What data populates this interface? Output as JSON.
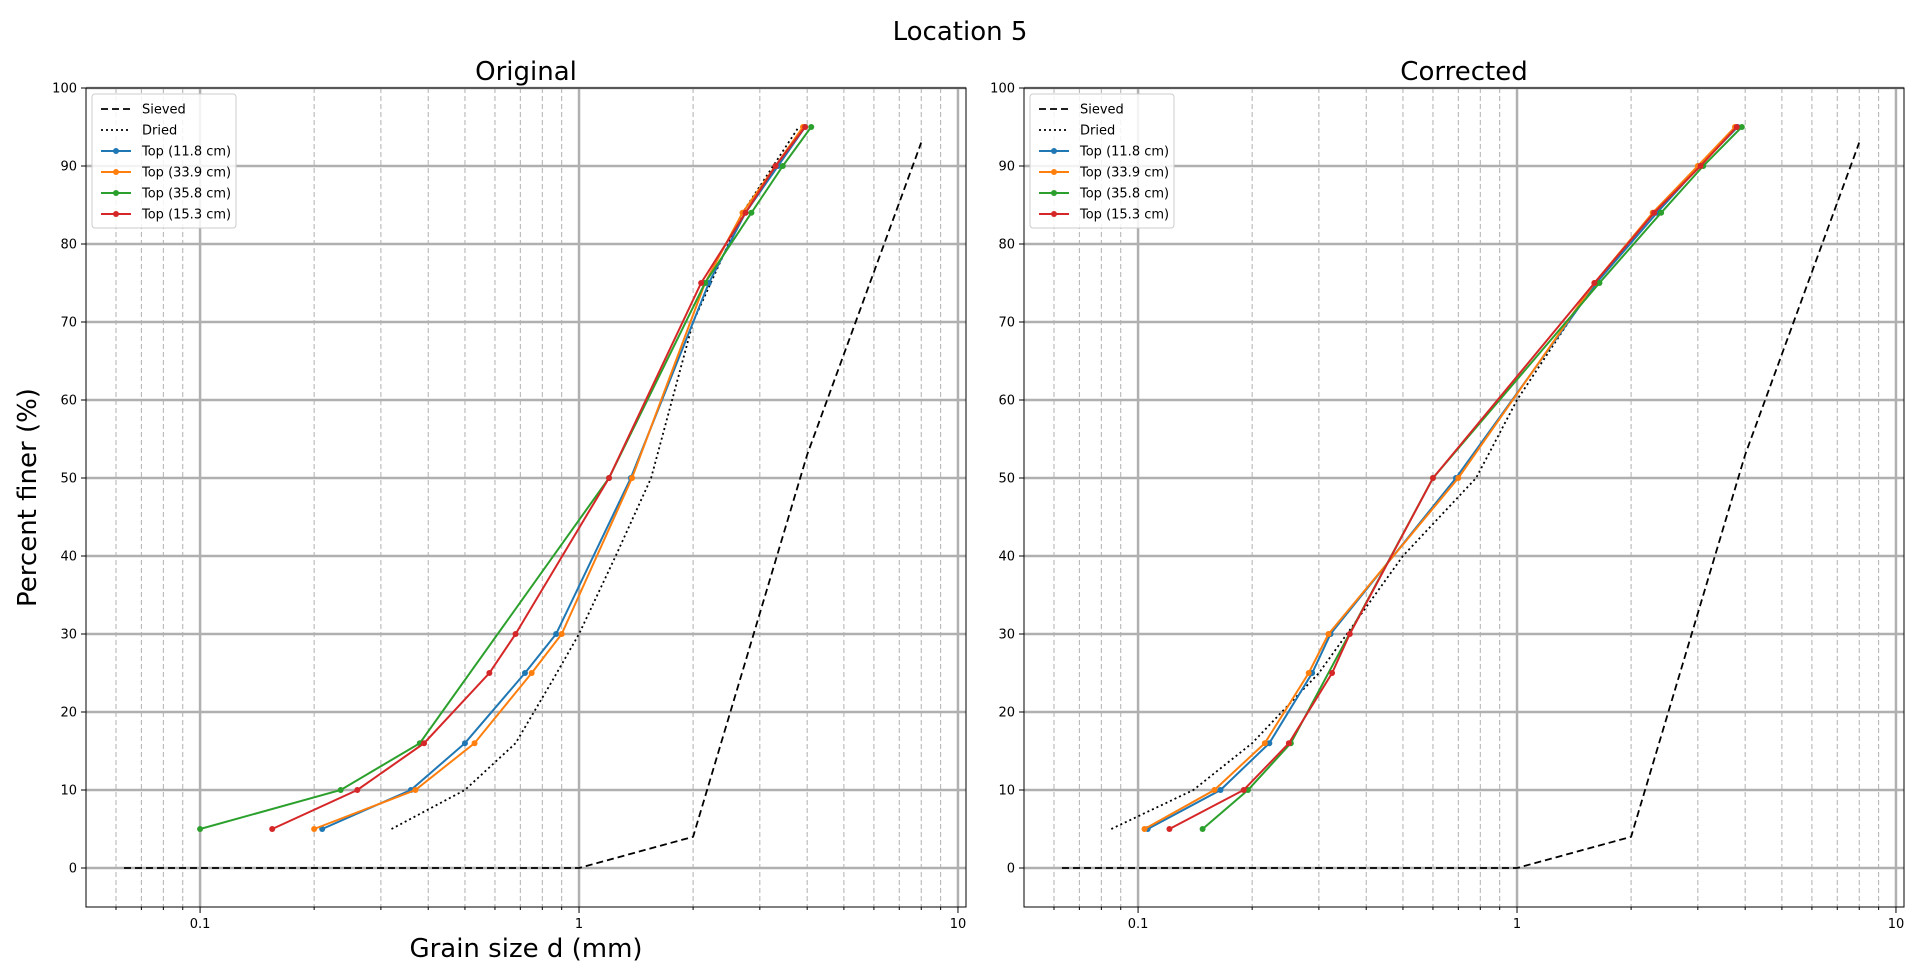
{
  "figure": {
    "suptitle": "Location 5"
  },
  "chart_data": [
    {
      "type": "line",
      "title": "Original",
      "xlabel": "Grain size d (mm)",
      "ylabel": "Percent finer (%)",
      "xscale": "log",
      "xlim": [
        0.05,
        10.5
      ],
      "ylim": [
        -5,
        100
      ],
      "xticks": [
        0.1,
        1,
        10
      ],
      "xtick_labels": [
        "0.1",
        "1",
        "10"
      ],
      "yticks": [
        0,
        10,
        20,
        30,
        40,
        50,
        60,
        70,
        80,
        90,
        100
      ],
      "ytick_labels": [
        "0",
        "10",
        "20",
        "30",
        "40",
        "50",
        "60",
        "70",
        "80",
        "90",
        "100"
      ],
      "grid": true,
      "legend_position": "top-left",
      "series": [
        {
          "name": "Sieved",
          "color": "#000000",
          "style": "dashed",
          "markers": false,
          "x": [
            0.063,
            1.0,
            2.0,
            4.0,
            8.0
          ],
          "y": [
            0,
            0,
            4,
            53,
            93
          ]
        },
        {
          "name": "Dried",
          "color": "#000000",
          "style": "dotted",
          "markers": false,
          "x": [
            0.32,
            0.5,
            0.68,
            0.85,
            1.0,
            1.25,
            1.55,
            2.0,
            2.7,
            3.8
          ],
          "y": [
            5,
            10,
            16,
            24,
            30,
            40,
            50,
            70,
            84,
            95
          ]
        },
        {
          "name": "Top (11.8 cm)",
          "color": "#1f77b4",
          "style": "solid",
          "markers": true,
          "x": [
            0.21,
            0.36,
            0.5,
            0.72,
            0.87,
            1.37,
            2.2,
            2.75,
            3.35,
            3.95
          ],
          "y": [
            5,
            10,
            16,
            25,
            30,
            50,
            75,
            84,
            90,
            95
          ]
        },
        {
          "name": "Top (33.9 cm)",
          "color": "#ff7f0e",
          "style": "solid",
          "markers": true,
          "x": [
            0.2,
            0.37,
            0.53,
            0.75,
            0.9,
            1.38,
            2.15,
            2.7,
            3.3,
            3.9
          ],
          "y": [
            5,
            10,
            16,
            25,
            30,
            50,
            75,
            84,
            90,
            95
          ]
        },
        {
          "name": "Top (35.8 cm)",
          "color": "#2ca02c",
          "style": "solid",
          "markers": true,
          "x": [
            0.1,
            0.235,
            0.38,
            1.2,
            2.15,
            2.85,
            3.45,
            4.1
          ],
          "y": [
            5,
            10,
            16,
            50,
            75,
            84,
            90,
            95
          ]
        },
        {
          "name": "Top (15.3 cm)",
          "color": "#d62728",
          "style": "solid",
          "markers": true,
          "x": [
            0.155,
            0.26,
            0.39,
            0.58,
            0.68,
            1.2,
            2.1,
            2.75,
            3.3,
            3.95
          ],
          "y": [
            5,
            10,
            16,
            25,
            30,
            50,
            75,
            84,
            90,
            95
          ]
        }
      ]
    },
    {
      "type": "line",
      "title": "Corrected",
      "xlabel": "",
      "ylabel": "",
      "xscale": "log",
      "xlim": [
        0.05,
        10.5
      ],
      "ylim": [
        -5,
        100
      ],
      "xticks": [
        0.1,
        1,
        10
      ],
      "xtick_labels": [
        "0.1",
        "1",
        "10"
      ],
      "yticks": [
        0,
        10,
        20,
        30,
        40,
        50,
        60,
        70,
        80,
        90,
        100
      ],
      "ytick_labels": [
        "0",
        "10",
        "20",
        "30",
        "40",
        "50",
        "60",
        "70",
        "80",
        "90",
        "100"
      ],
      "grid": true,
      "legend_position": "top-left",
      "series": [
        {
          "name": "Sieved",
          "color": "#000000",
          "style": "dashed",
          "markers": false,
          "x": [
            0.063,
            1.0,
            2.0,
            4.0,
            8.0
          ],
          "y": [
            0,
            0,
            4,
            53,
            93
          ]
        },
        {
          "name": "Dried",
          "color": "#000000",
          "style": "dotted",
          "markers": false,
          "x": [
            0.085,
            0.14,
            0.2,
            0.3,
            0.5,
            0.78,
            1.0,
            1.6,
            2.3,
            3.8
          ],
          "y": [
            5,
            10,
            16,
            25,
            40,
            50,
            60,
            75,
            84,
            95
          ]
        },
        {
          "name": "Top (11.8 cm)",
          "color": "#1f77b4",
          "style": "solid",
          "markers": true,
          "x": [
            0.106,
            0.165,
            0.222,
            0.288,
            0.322,
            0.69,
            1.62,
            2.34,
            3.03,
            3.82
          ],
          "y": [
            5,
            10,
            16,
            25,
            30,
            50,
            75,
            84,
            90,
            95
          ]
        },
        {
          "name": "Top (33.9 cm)",
          "color": "#ff7f0e",
          "style": "solid",
          "markers": true,
          "x": [
            0.104,
            0.159,
            0.216,
            0.282,
            0.318,
            0.7,
            1.6,
            2.28,
            3.0,
            3.76
          ],
          "y": [
            5,
            10,
            16,
            25,
            30,
            50,
            75,
            84,
            90,
            95
          ]
        },
        {
          "name": "Top (35.8 cm)",
          "color": "#2ca02c",
          "style": "solid",
          "markers": true,
          "x": [
            0.148,
            0.195,
            0.253,
            0.6,
            1.65,
            2.4,
            3.1,
            3.92
          ],
          "y": [
            5,
            10,
            16,
            50,
            75,
            84,
            90,
            95
          ]
        },
        {
          "name": "Top (15.3 cm)",
          "color": "#d62728",
          "style": "solid",
          "markers": true,
          "x": [
            0.121,
            0.19,
            0.25,
            0.325,
            0.362,
            0.6,
            1.6,
            2.3,
            3.05,
            3.8
          ],
          "y": [
            5,
            10,
            16,
            25,
            30,
            50,
            75,
            84,
            90,
            95
          ]
        }
      ]
    }
  ]
}
